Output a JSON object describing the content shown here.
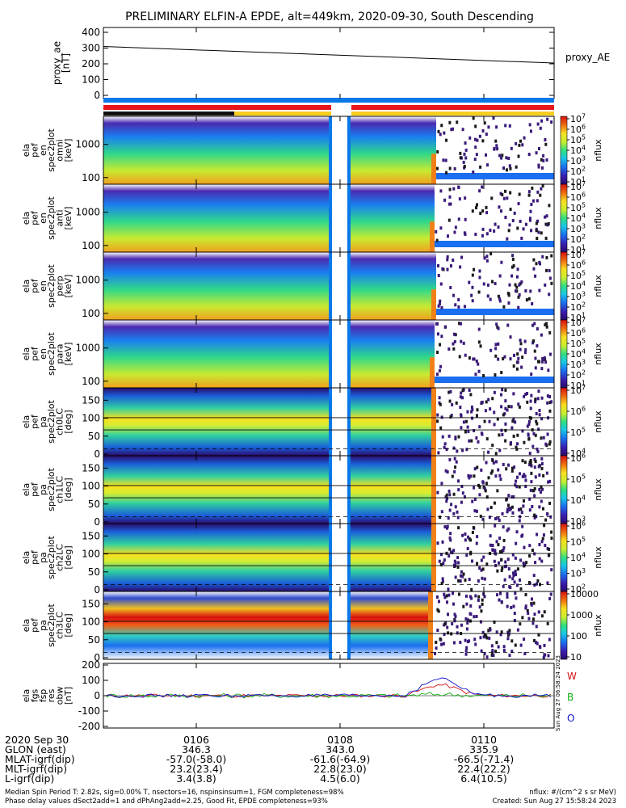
{
  "title": "PRELIMINARY ELFIN-A EPDE, alt=449km, 2020-09-30, South Descending",
  "proxy_ae": {
    "ylabel_lines": [
      "proxy_ae",
      "[nT]"
    ],
    "label": "proxy_AE",
    "ticks": [
      "0",
      "100",
      "200",
      "300",
      "400"
    ]
  },
  "colors": {
    "bar_blue": "#0a78e8",
    "bar_red": "#e8141c",
    "bar_yellow": "#f6cf1e",
    "bar_black": "#111111"
  },
  "spectrogram_panels": [
    {
      "ylabel_lines": [
        "ela",
        "pef",
        "en",
        "spec2plot",
        "omni",
        "[keV]"
      ],
      "yticks": [
        "100",
        "1000"
      ],
      "cbar_ticks": [
        "10^1",
        "10^2",
        "10^3",
        "10^4",
        "10^5",
        "10^6",
        "10^7"
      ],
      "cbar_label": "nflux"
    },
    {
      "ylabel_lines": [
        "ela",
        "pef",
        "en",
        "spec2plot",
        "anti",
        "[keV]"
      ],
      "yticks": [
        "100",
        "1000"
      ],
      "cbar_ticks": [
        "10^1",
        "10^2",
        "10^3",
        "10^4",
        "10^5",
        "10^6",
        "10^7"
      ],
      "cbar_label": "nflux"
    },
    {
      "ylabel_lines": [
        "ela",
        "pef",
        "en",
        "spec2plot",
        "perp",
        "[keV]"
      ],
      "yticks": [
        "100",
        "1000"
      ],
      "cbar_ticks": [
        "10^1",
        "10^2",
        "10^3",
        "10^4",
        "10^5",
        "10^6",
        "10^7"
      ],
      "cbar_label": "nflux"
    },
    {
      "ylabel_lines": [
        "ela",
        "pef",
        "en",
        "spec2plot",
        "para",
        "[keV]"
      ],
      "yticks": [
        "100",
        "1000"
      ],
      "cbar_ticks": [
        "10^1",
        "10^2",
        "10^3",
        "10^4",
        "10^5",
        "10^6",
        "10^7"
      ],
      "cbar_label": "nflux"
    },
    {
      "ylabel_lines": [
        "ela",
        "pef",
        "pa",
        "spec2plot",
        "ch0LC",
        "[deg]"
      ],
      "yticks": [
        "0",
        "50",
        "100",
        "150"
      ],
      "cbar_ticks": [
        "10^4",
        "10^5",
        "10^6",
        "10^7"
      ],
      "cbar_label": "nflux"
    },
    {
      "ylabel_lines": [
        "ela",
        "pef",
        "pa",
        "spec2plot",
        "ch1LC",
        "[deg]"
      ],
      "yticks": [
        "0",
        "50",
        "100",
        "150"
      ],
      "cbar_ticks": [
        "10^3",
        "10^4",
        "10^5",
        "10^6"
      ],
      "cbar_label": "nflux"
    },
    {
      "ylabel_lines": [
        "ela",
        "pef",
        "pa",
        "spec2plot",
        "ch2LC",
        "[deg]"
      ],
      "yticks": [
        "0",
        "50",
        "100",
        "150"
      ],
      "cbar_ticks": [
        "10^2",
        "10^3",
        "10^4",
        "10^5",
        "10^6"
      ],
      "cbar_label": "nflux"
    },
    {
      "ylabel_lines": [
        "ela",
        "pef",
        "pa",
        "spec2plot",
        "ch3LC",
        "[deg]"
      ],
      "yticks": [
        "0",
        "50",
        "100",
        "150"
      ],
      "cbar_ticks": [
        "10",
        "100",
        "1000",
        "10000"
      ],
      "cbar_label": "nflux"
    }
  ],
  "field_panel": {
    "ylabel_lines": [
      "ela",
      "fgs",
      "fsp",
      "res",
      "obw",
      "[nT]"
    ],
    "yticks": [
      "-200",
      "-100",
      "0",
      "100",
      "200"
    ],
    "legend": [
      {
        "label": "W",
        "color": "#d01010"
      },
      {
        "label": "B",
        "color": "#10b010"
      },
      {
        "label": "O",
        "color": "#1010d0"
      }
    ],
    "side_stamp": "Sun Aug 27 06:58:24 2023"
  },
  "footer": {
    "row_labels": [
      "2020 Sep 30",
      "GLON (east)",
      "MLAT-igrf(dip)",
      "MLT-igrf(dip)",
      "L-igrf(dip)"
    ],
    "columns": [
      {
        "values": [
          "0106",
          "346.3",
          "-57.0(-58.0)",
          "23.2(23.4)",
          "3.4(3.8)"
        ]
      },
      {
        "values": [
          "0108",
          "343.0",
          "-61.6(-64.9)",
          "22.8(23.0)",
          "4.5(6.0)"
        ]
      },
      {
        "values": [
          "0110",
          "335.9",
          "-66.5(-71.4)",
          "22.4(22.2)",
          "6.4(10.5)"
        ]
      }
    ],
    "fine_left": [
      "Median Spin Period T: 2.82s, sig=0.00% T, nsectors=16, nspinsinsum=1, FGM completeness=98%",
      "Phase delay values dSect2add=1 and dPhAng2add=2.25, Good Fit, EPDE completeness=93%"
    ],
    "fine_right": [
      "nflux: #/(cm^2 s sr MeV)",
      "Created: Sun Aug 27 15:58:24 2023"
    ]
  },
  "chart_data": {
    "type": "heatmap",
    "title": "PRELIMINARY ELFIN-A EPDE, alt=449km, 2020-09-30, South Descending",
    "time_ticks": [
      "0106",
      "0108",
      "0110"
    ],
    "panels": [
      {
        "name": "proxy_ae",
        "type": "line",
        "ylabel": "proxy_ae [nT]",
        "ylim": [
          0,
          400
        ],
        "series": [
          {
            "name": "proxy_AE",
            "x": [
              "start",
              "end"
            ],
            "values": [
              310,
              205
            ]
          }
        ]
      },
      {
        "name": "omni",
        "ylabel": "ela pef en spec2plot omni [keV]",
        "ylim_keV": [
          63,
          7000
        ],
        "yscale": "log",
        "zlim": [
          10,
          10000000
        ],
        "zscale": "log"
      },
      {
        "name": "anti",
        "ylabel": "ela pef en spec2plot anti [keV]",
        "ylim_keV": [
          63,
          7000
        ],
        "yscale": "log",
        "zlim": [
          10,
          10000000
        ],
        "zscale": "log"
      },
      {
        "name": "perp",
        "ylabel": "ela pef en spec2plot perp [keV]",
        "ylim_keV": [
          63,
          7000
        ],
        "yscale": "log",
        "zlim": [
          10,
          10000000
        ],
        "zscale": "log"
      },
      {
        "name": "para",
        "ylabel": "ela pef en spec2plot para [keV]",
        "ylim_keV": [
          63,
          7000
        ],
        "yscale": "log",
        "zlim": [
          10,
          10000000
        ],
        "zscale": "log"
      },
      {
        "name": "ch0LC",
        "ylabel": "ela pef pa spec2plot ch0LC [deg]",
        "ylim": [
          0,
          180
        ],
        "zlim": [
          3000,
          10000000
        ],
        "zscale": "log"
      },
      {
        "name": "ch1LC",
        "ylabel": "ela pef pa spec2plot ch1LC [deg]",
        "ylim": [
          0,
          180
        ],
        "zlim": [
          1000,
          3000000
        ],
        "zscale": "log"
      },
      {
        "name": "ch2LC",
        "ylabel": "ela pef pa spec2plot ch2LC [deg]",
        "ylim": [
          0,
          180
        ],
        "zlim": [
          100,
          1000000
        ],
        "zscale": "log"
      },
      {
        "name": "ch3LC",
        "ylabel": "ela pef pa spec2plot ch3LC [deg]",
        "ylim": [
          0,
          180
        ],
        "zlim": [
          10,
          10000
        ],
        "zscale": "log"
      },
      {
        "name": "obw",
        "type": "line",
        "ylabel": "ela fgs fsp res obw [nT]",
        "ylim": [
          -200,
          200
        ],
        "series_names": [
          "W",
          "B",
          "O"
        ]
      }
    ]
  }
}
